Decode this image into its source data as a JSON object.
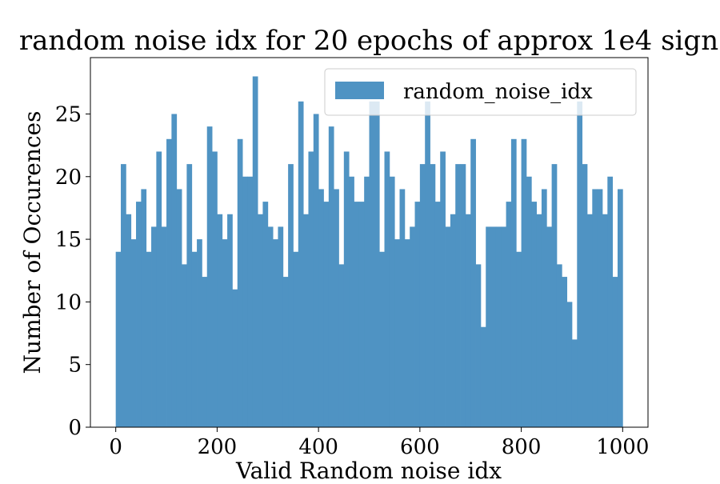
{
  "chart_data": {
    "type": "histogram",
    "title": "random noise idx for 20 epochs of approx 1e4 sign",
    "xlabel": "Valid Random noise idx",
    "ylabel": "Number of Occurences",
    "xlim": [
      -50,
      1050
    ],
    "ylim": [
      0,
      29.5
    ],
    "xticks": [
      0,
      200,
      400,
      600,
      800,
      1000
    ],
    "yticks": [
      0,
      5,
      10,
      15,
      20,
      25
    ],
    "grid": false,
    "legend_position": "upper-right",
    "bin_start": 0,
    "bin_width": 10,
    "series": [
      {
        "name": "random_noise_idx",
        "color": "#4f93c3",
        "values": [
          14,
          21,
          17,
          15,
          18,
          19,
          14,
          16,
          22,
          16,
          23,
          25,
          19,
          13,
          21,
          14,
          15,
          12,
          24,
          22,
          17,
          15,
          17,
          11,
          23,
          20,
          20,
          28,
          17,
          18,
          16,
          15,
          16,
          12,
          21,
          14,
          26,
          17,
          22,
          25,
          19,
          18,
          24,
          19,
          13,
          22,
          20,
          18,
          18,
          20,
          26,
          26,
          14,
          22,
          20,
          15,
          19,
          15,
          16,
          18,
          21,
          26,
          21,
          18,
          22,
          16,
          17,
          21,
          21,
          17,
          23,
          13,
          8,
          16,
          16,
          16,
          16,
          18,
          23,
          14,
          23,
          20,
          18,
          17,
          19,
          16,
          21,
          13,
          12,
          10,
          7,
          26,
          21,
          17,
          19,
          19,
          17,
          20,
          12,
          19
        ]
      }
    ]
  }
}
